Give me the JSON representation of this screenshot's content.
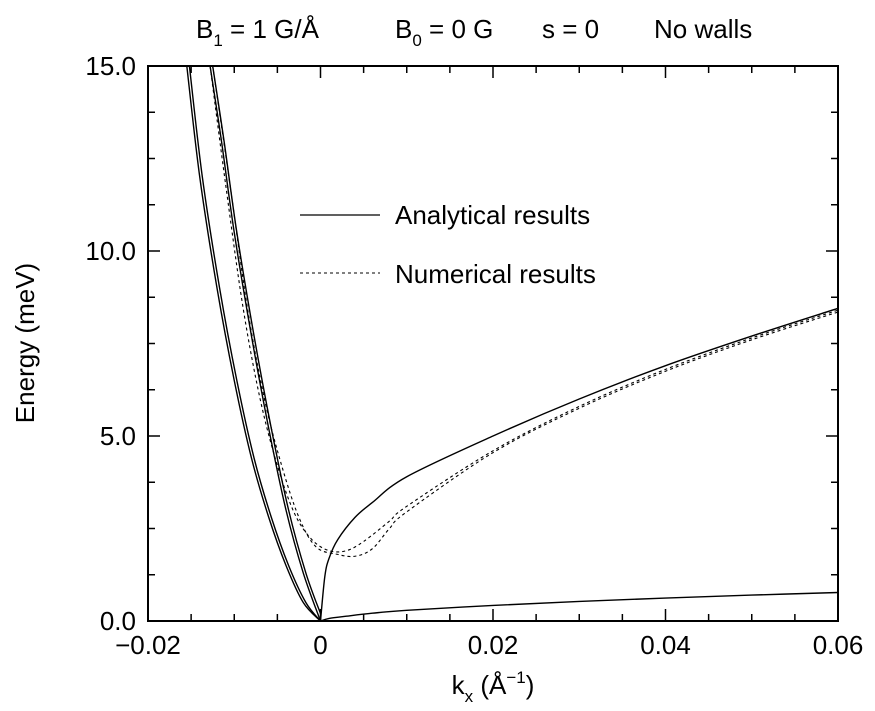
{
  "chart_data": {
    "type": "line",
    "title": {
      "b1_base": "B",
      "b1_sub": "1",
      "b1_rest": " = 1 G/Å",
      "b0_base": "B",
      "b0_sub": "0",
      "b0_rest": " = 0 G",
      "s_text": "s = 0",
      "walls_text": "No walls"
    },
    "xlabel": {
      "base": "k",
      "sub": "x",
      "rest": " (Å",
      "sup": "−1",
      "close": ")"
    },
    "ylabel": "Energy (meV)",
    "xlim": [
      -0.02,
      0.06
    ],
    "ylim": [
      0,
      15
    ],
    "x_ticks": [
      -0.02,
      0,
      0.02,
      0.04,
      0.06
    ],
    "x_tick_labels": [
      "−0.02",
      "0",
      "0.02",
      "0.04",
      "0.06"
    ],
    "y_ticks": [
      0,
      5,
      10,
      15
    ],
    "y_tick_labels": [
      "0.0",
      "5.0",
      "10.0",
      "15.0"
    ],
    "grid": false,
    "legend": {
      "position": "upper-center",
      "entries": [
        {
          "label": "Analytical results",
          "style": "solid"
        },
        {
          "label": "Numerical results",
          "style": "dashed"
        }
      ]
    },
    "series": [
      {
        "group": "Analytical results",
        "style": "solid",
        "points": [
          [
            -0.0155,
            15
          ],
          [
            -0.014,
            12
          ],
          [
            -0.012,
            9
          ],
          [
            -0.01,
            6.5
          ],
          [
            -0.008,
            4.4
          ],
          [
            -0.006,
            2.8
          ],
          [
            -0.004,
            1.5
          ],
          [
            -0.002,
            0.5
          ],
          [
            0,
            0
          ]
        ]
      },
      {
        "group": "Analytical results",
        "style": "solid",
        "points": [
          [
            -0.0152,
            15
          ],
          [
            -0.0137,
            12
          ],
          [
            -0.0117,
            9
          ],
          [
            -0.0097,
            6.5
          ],
          [
            -0.0077,
            4.4
          ],
          [
            -0.0057,
            2.8
          ],
          [
            -0.0037,
            1.5
          ],
          [
            -0.0017,
            0.5
          ],
          [
            0,
            0
          ]
        ]
      },
      {
        "group": "Analytical results",
        "style": "solid",
        "points": [
          [
            -0.0128,
            15
          ],
          [
            -0.0115,
            13
          ],
          [
            -0.01,
            10.5
          ],
          [
            -0.008,
            7.7
          ],
          [
            -0.006,
            5.2
          ],
          [
            -0.004,
            3.0
          ],
          [
            -0.002,
            1.3
          ],
          [
            0,
            0
          ]
        ]
      },
      {
        "group": "Analytical results",
        "style": "solid",
        "points": [
          [
            -0.0125,
            15
          ],
          [
            -0.0112,
            13
          ],
          [
            -0.0097,
            10.5
          ],
          [
            -0.0077,
            7.7
          ],
          [
            -0.0057,
            5.2
          ],
          [
            -0.0037,
            3.0
          ],
          [
            -0.0017,
            1.3
          ],
          [
            0,
            0.2
          ]
        ]
      },
      {
        "group": "Analytical results",
        "style": "solid",
        "points": [
          [
            0,
            0
          ],
          [
            0.0005,
            1.2
          ],
          [
            0.001,
            1.7
          ],
          [
            0.002,
            2.2
          ],
          [
            0.004,
            2.8
          ],
          [
            0.006,
            3.2
          ],
          [
            0.01,
            3.9
          ],
          [
            0.02,
            5.0
          ],
          [
            0.03,
            6.0
          ],
          [
            0.04,
            6.9
          ],
          [
            0.05,
            7.7
          ],
          [
            0.06,
            8.45
          ]
        ]
      },
      {
        "group": "Analytical results",
        "style": "solid",
        "points": [
          [
            0,
            0
          ],
          [
            0.001,
            0.07
          ],
          [
            0.003,
            0.13
          ],
          [
            0.006,
            0.21
          ],
          [
            0.01,
            0.29
          ],
          [
            0.02,
            0.42
          ],
          [
            0.03,
            0.53
          ],
          [
            0.04,
            0.62
          ],
          [
            0.05,
            0.7
          ],
          [
            0.06,
            0.77
          ]
        ]
      },
      {
        "group": "Numerical results",
        "style": "dashed",
        "points": [
          [
            -0.0128,
            15
          ],
          [
            -0.011,
            11.8
          ],
          [
            -0.009,
            8.5
          ],
          [
            -0.007,
            6.0
          ],
          [
            -0.005,
            4.2
          ],
          [
            -0.003,
            2.9
          ],
          [
            -0.001,
            2.2
          ],
          [
            0.001,
            1.9
          ],
          [
            0.003,
            1.9
          ],
          [
            0.005,
            2.15
          ],
          [
            0.008,
            2.7
          ],
          [
            0.01,
            3.1
          ],
          [
            0.02,
            4.6
          ],
          [
            0.03,
            5.8
          ],
          [
            0.04,
            6.8
          ],
          [
            0.05,
            7.65
          ],
          [
            0.06,
            8.4
          ]
        ]
      },
      {
        "group": "Numerical results",
        "style": "dashed",
        "points": [
          [
            -0.0125,
            15
          ],
          [
            -0.0105,
            11.8
          ],
          [
            -0.0085,
            8.5
          ],
          [
            -0.0065,
            6.0
          ],
          [
            -0.0045,
            4.2
          ],
          [
            -0.0025,
            2.8
          ],
          [
            -0.0005,
            2.0
          ],
          [
            0.002,
            1.8
          ],
          [
            0.004,
            1.75
          ],
          [
            0.006,
            1.95
          ],
          [
            0.008,
            2.5
          ],
          [
            0.01,
            2.95
          ],
          [
            0.02,
            4.55
          ],
          [
            0.03,
            5.75
          ],
          [
            0.04,
            6.75
          ],
          [
            0.05,
            7.6
          ],
          [
            0.06,
            8.35
          ]
        ]
      }
    ]
  }
}
